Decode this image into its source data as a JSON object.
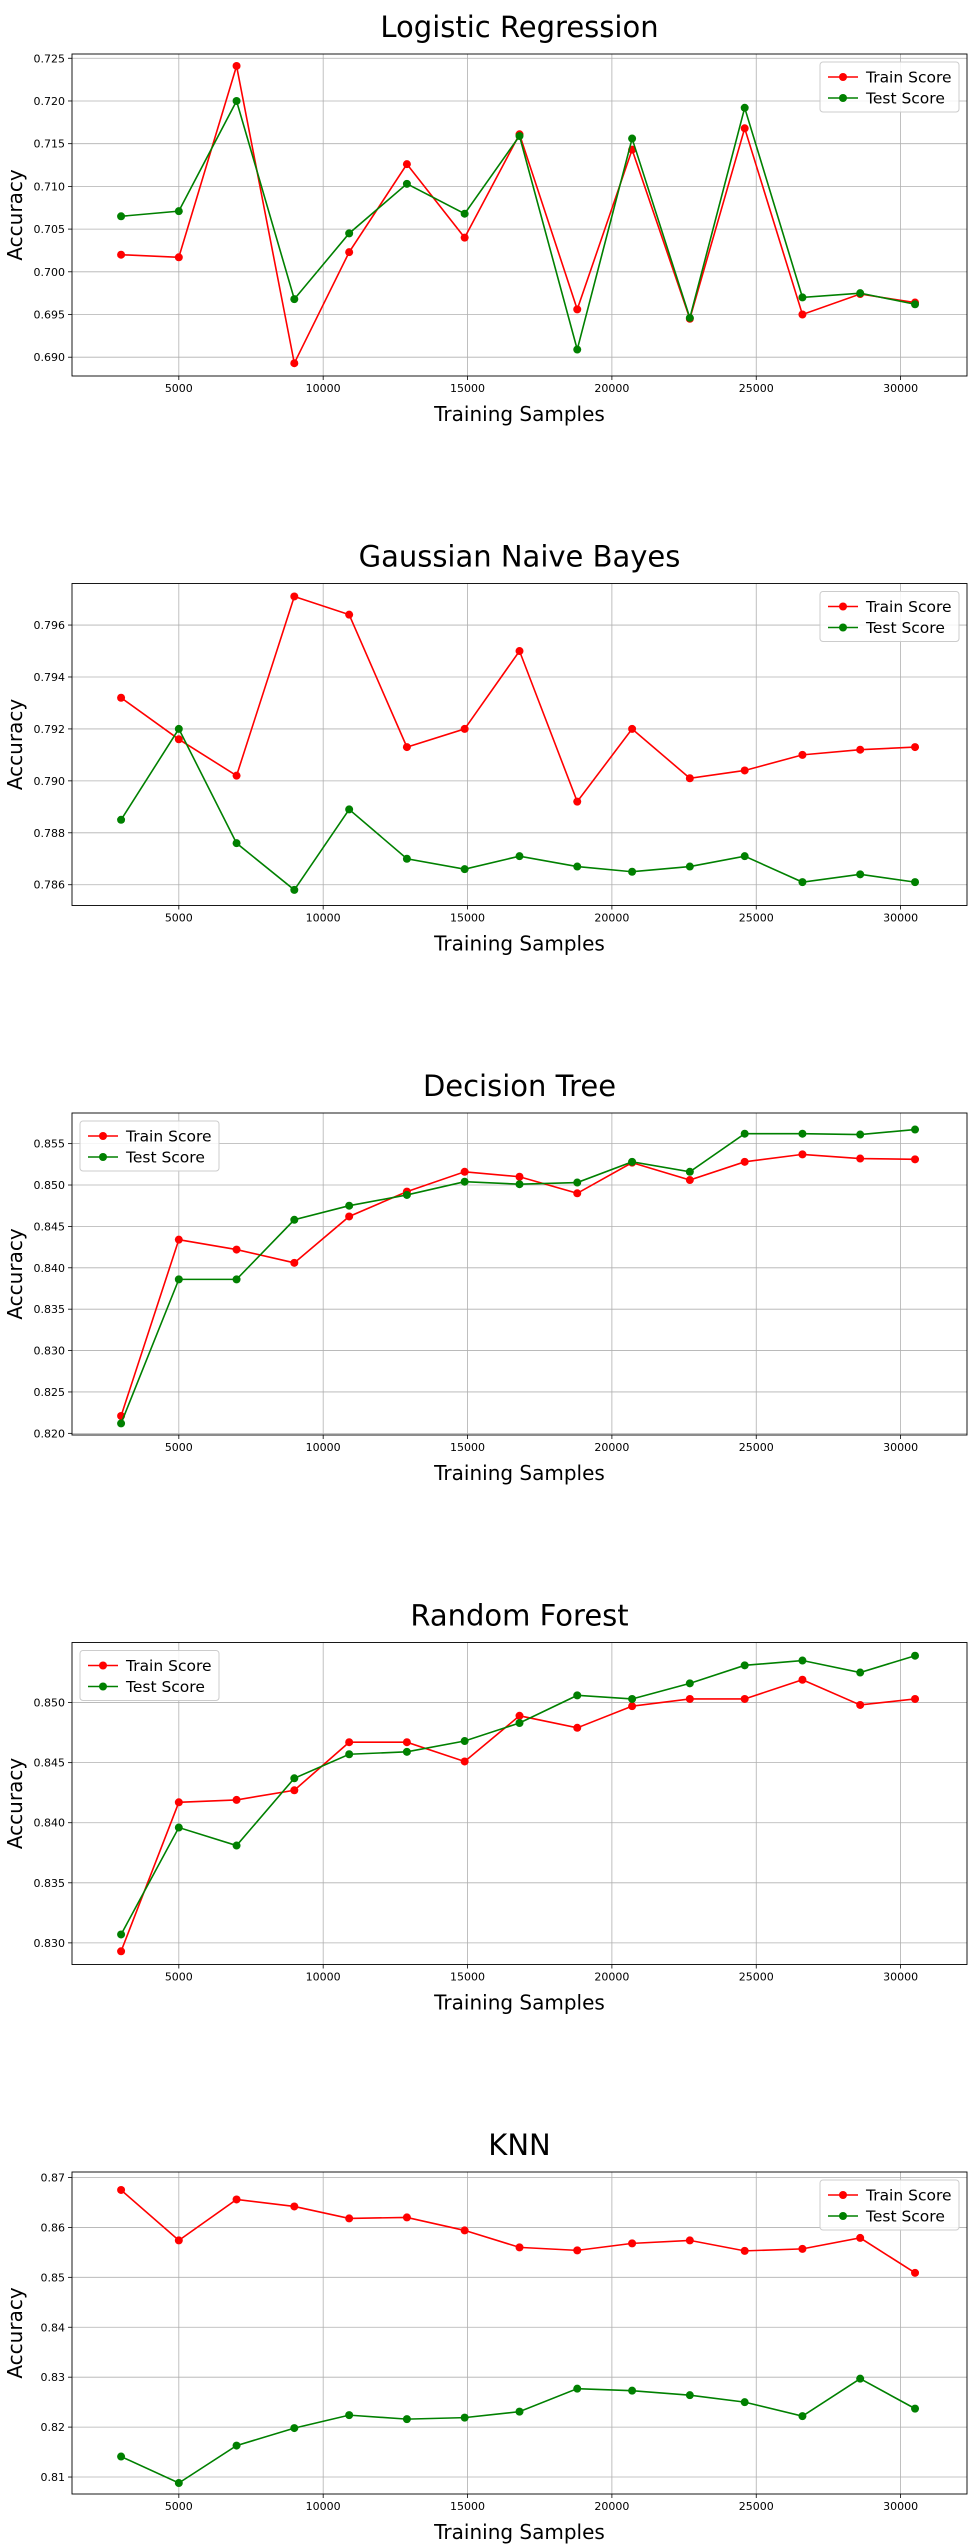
{
  "chart_data": [
    {
      "type": "line",
      "title": "Logistic Regression",
      "xlabel": "Training Samples",
      "ylabel": "Accuracy",
      "x": [
        3000,
        5000,
        7000,
        9000,
        10900,
        12900,
        14900,
        16800,
        18800,
        20700,
        22700,
        24600,
        26600,
        28600,
        30500
      ],
      "xticks": [
        5000,
        10000,
        15000,
        20000,
        25000,
        30000
      ],
      "xlim": [
        1300,
        32300
      ],
      "ylim": [
        0.6878,
        0.7255
      ],
      "yticks": [
        0.69,
        0.695,
        0.7,
        0.705,
        0.71,
        0.715,
        0.72,
        0.725
      ],
      "ytick_decimals": 3,
      "grid": true,
      "legend": "top-right",
      "series": [
        {
          "name": "Train Score",
          "color": "#ff0000",
          "values": [
            0.702,
            0.7017,
            0.7241,
            0.6893,
            0.7023,
            0.7126,
            0.704,
            0.7161,
            0.6956,
            0.7143,
            0.6945,
            0.7168,
            0.695,
            0.6974,
            0.6964
          ]
        },
        {
          "name": "Test Score",
          "color": "#008000",
          "values": [
            0.7065,
            0.7071,
            0.72,
            0.6968,
            0.7045,
            0.7103,
            0.7068,
            0.7159,
            0.6909,
            0.7156,
            0.6946,
            0.7192,
            0.697,
            0.6975,
            0.6962
          ]
        }
      ]
    },
    {
      "type": "line",
      "title": "Gaussian Naive Bayes",
      "xlabel": "Training Samples",
      "ylabel": "Accuracy",
      "x": [
        3000,
        5000,
        7000,
        9000,
        10900,
        12900,
        14900,
        16800,
        18800,
        20700,
        22700,
        24600,
        26600,
        28600,
        30500
      ],
      "xticks": [
        5000,
        10000,
        15000,
        20000,
        25000,
        30000
      ],
      "xlim": [
        1300,
        32300
      ],
      "ylim": [
        0.7852,
        0.7976
      ],
      "yticks": [
        0.786,
        0.788,
        0.79,
        0.792,
        0.794,
        0.796
      ],
      "ytick_decimals": 3,
      "grid": true,
      "legend": "top-right",
      "series": [
        {
          "name": "Train Score",
          "color": "#ff0000",
          "values": [
            0.7932,
            0.7916,
            0.7902,
            0.7971,
            0.7964,
            0.7913,
            0.792,
            0.795,
            0.7892,
            0.792,
            0.7901,
            0.7904,
            0.791,
            0.7912,
            0.7913
          ]
        },
        {
          "name": "Test Score",
          "color": "#008000",
          "values": [
            0.7885,
            0.792,
            0.7876,
            0.7858,
            0.7889,
            0.787,
            0.7866,
            0.7871,
            0.7867,
            0.7865,
            0.7867,
            0.7871,
            0.7861,
            0.7864,
            0.7861
          ]
        }
      ]
    },
    {
      "type": "line",
      "title": "Decision Tree",
      "xlabel": "Training Samples",
      "ylabel": "Accuracy",
      "x": [
        3000,
        5000,
        7000,
        9000,
        10900,
        12900,
        14900,
        16800,
        18800,
        20700,
        22700,
        24600,
        26600,
        28600,
        30500
      ],
      "xticks": [
        5000,
        10000,
        15000,
        20000,
        25000,
        30000
      ],
      "xlim": [
        1300,
        32300
      ],
      "ylim": [
        0.8198,
        0.8587
      ],
      "yticks": [
        0.82,
        0.825,
        0.83,
        0.835,
        0.84,
        0.845,
        0.85,
        0.855
      ],
      "ytick_decimals": 3,
      "grid": true,
      "legend": "top-left",
      "series": [
        {
          "name": "Train Score",
          "color": "#ff0000",
          "values": [
            0.8221,
            0.8434,
            0.8422,
            0.8406,
            0.8462,
            0.8492,
            0.8516,
            0.851,
            0.849,
            0.8527,
            0.8506,
            0.8528,
            0.8537,
            0.8532,
            0.8531
          ]
        },
        {
          "name": "Test Score",
          "color": "#008000",
          "values": [
            0.8212,
            0.8386,
            0.8386,
            0.8458,
            0.8475,
            0.8488,
            0.8504,
            0.8501,
            0.8503,
            0.8528,
            0.8516,
            0.8562,
            0.8562,
            0.8561,
            0.8567
          ]
        }
      ]
    },
    {
      "type": "line",
      "title": "Random Forest",
      "xlabel": "Training Samples",
      "ylabel": "Accuracy",
      "x": [
        3000,
        5000,
        7000,
        9000,
        10900,
        12900,
        14900,
        16800,
        18800,
        20700,
        22700,
        24600,
        26600,
        28600,
        30500
      ],
      "xticks": [
        5000,
        10000,
        15000,
        20000,
        25000,
        30000
      ],
      "xlim": [
        1300,
        32300
      ],
      "ylim": [
        0.8282,
        0.855
      ],
      "yticks": [
        0.83,
        0.835,
        0.84,
        0.845,
        0.85
      ],
      "ytick_decimals": 3,
      "grid": true,
      "legend": "top-left",
      "series": [
        {
          "name": "Train Score",
          "color": "#ff0000",
          "values": [
            0.8293,
            0.8417,
            0.8419,
            0.8427,
            0.8467,
            0.8467,
            0.8451,
            0.8489,
            0.8479,
            0.8497,
            0.8503,
            0.8503,
            0.8519,
            0.8498,
            0.8503
          ]
        },
        {
          "name": "Test Score",
          "color": "#008000",
          "values": [
            0.8307,
            0.8396,
            0.8381,
            0.8437,
            0.8457,
            0.8459,
            0.8468,
            0.8483,
            0.8506,
            0.8503,
            0.8516,
            0.8531,
            0.8535,
            0.8525,
            0.8539
          ]
        }
      ]
    },
    {
      "type": "line",
      "title": "KNN",
      "xlabel": "Training Samples",
      "ylabel": "Accuracy",
      "x": [
        3000,
        5000,
        7000,
        9000,
        10900,
        12900,
        14900,
        16800,
        18800,
        20700,
        22700,
        24600,
        26600,
        28600,
        30500
      ],
      "xticks": [
        5000,
        10000,
        15000,
        20000,
        25000,
        30000
      ],
      "xlim": [
        1300,
        32300
      ],
      "ylim": [
        0.8066,
        0.8711
      ],
      "yticks": [
        0.81,
        0.82,
        0.83,
        0.84,
        0.85,
        0.86,
        0.87
      ],
      "ytick_decimals": 2,
      "grid": true,
      "legend": "top-right",
      "series": [
        {
          "name": "Train Score",
          "color": "#ff0000",
          "values": [
            0.8675,
            0.8574,
            0.8656,
            0.8642,
            0.8618,
            0.862,
            0.8594,
            0.856,
            0.8554,
            0.8568,
            0.8574,
            0.8553,
            0.8557,
            0.8579,
            0.8509
          ]
        },
        {
          "name": "Test Score",
          "color": "#008000",
          "values": [
            0.8141,
            0.8088,
            0.8163,
            0.8198,
            0.8224,
            0.8216,
            0.8219,
            0.8231,
            0.8277,
            0.8273,
            0.8264,
            0.825,
            0.8222,
            0.8297,
            0.8237
          ]
        }
      ]
    }
  ]
}
